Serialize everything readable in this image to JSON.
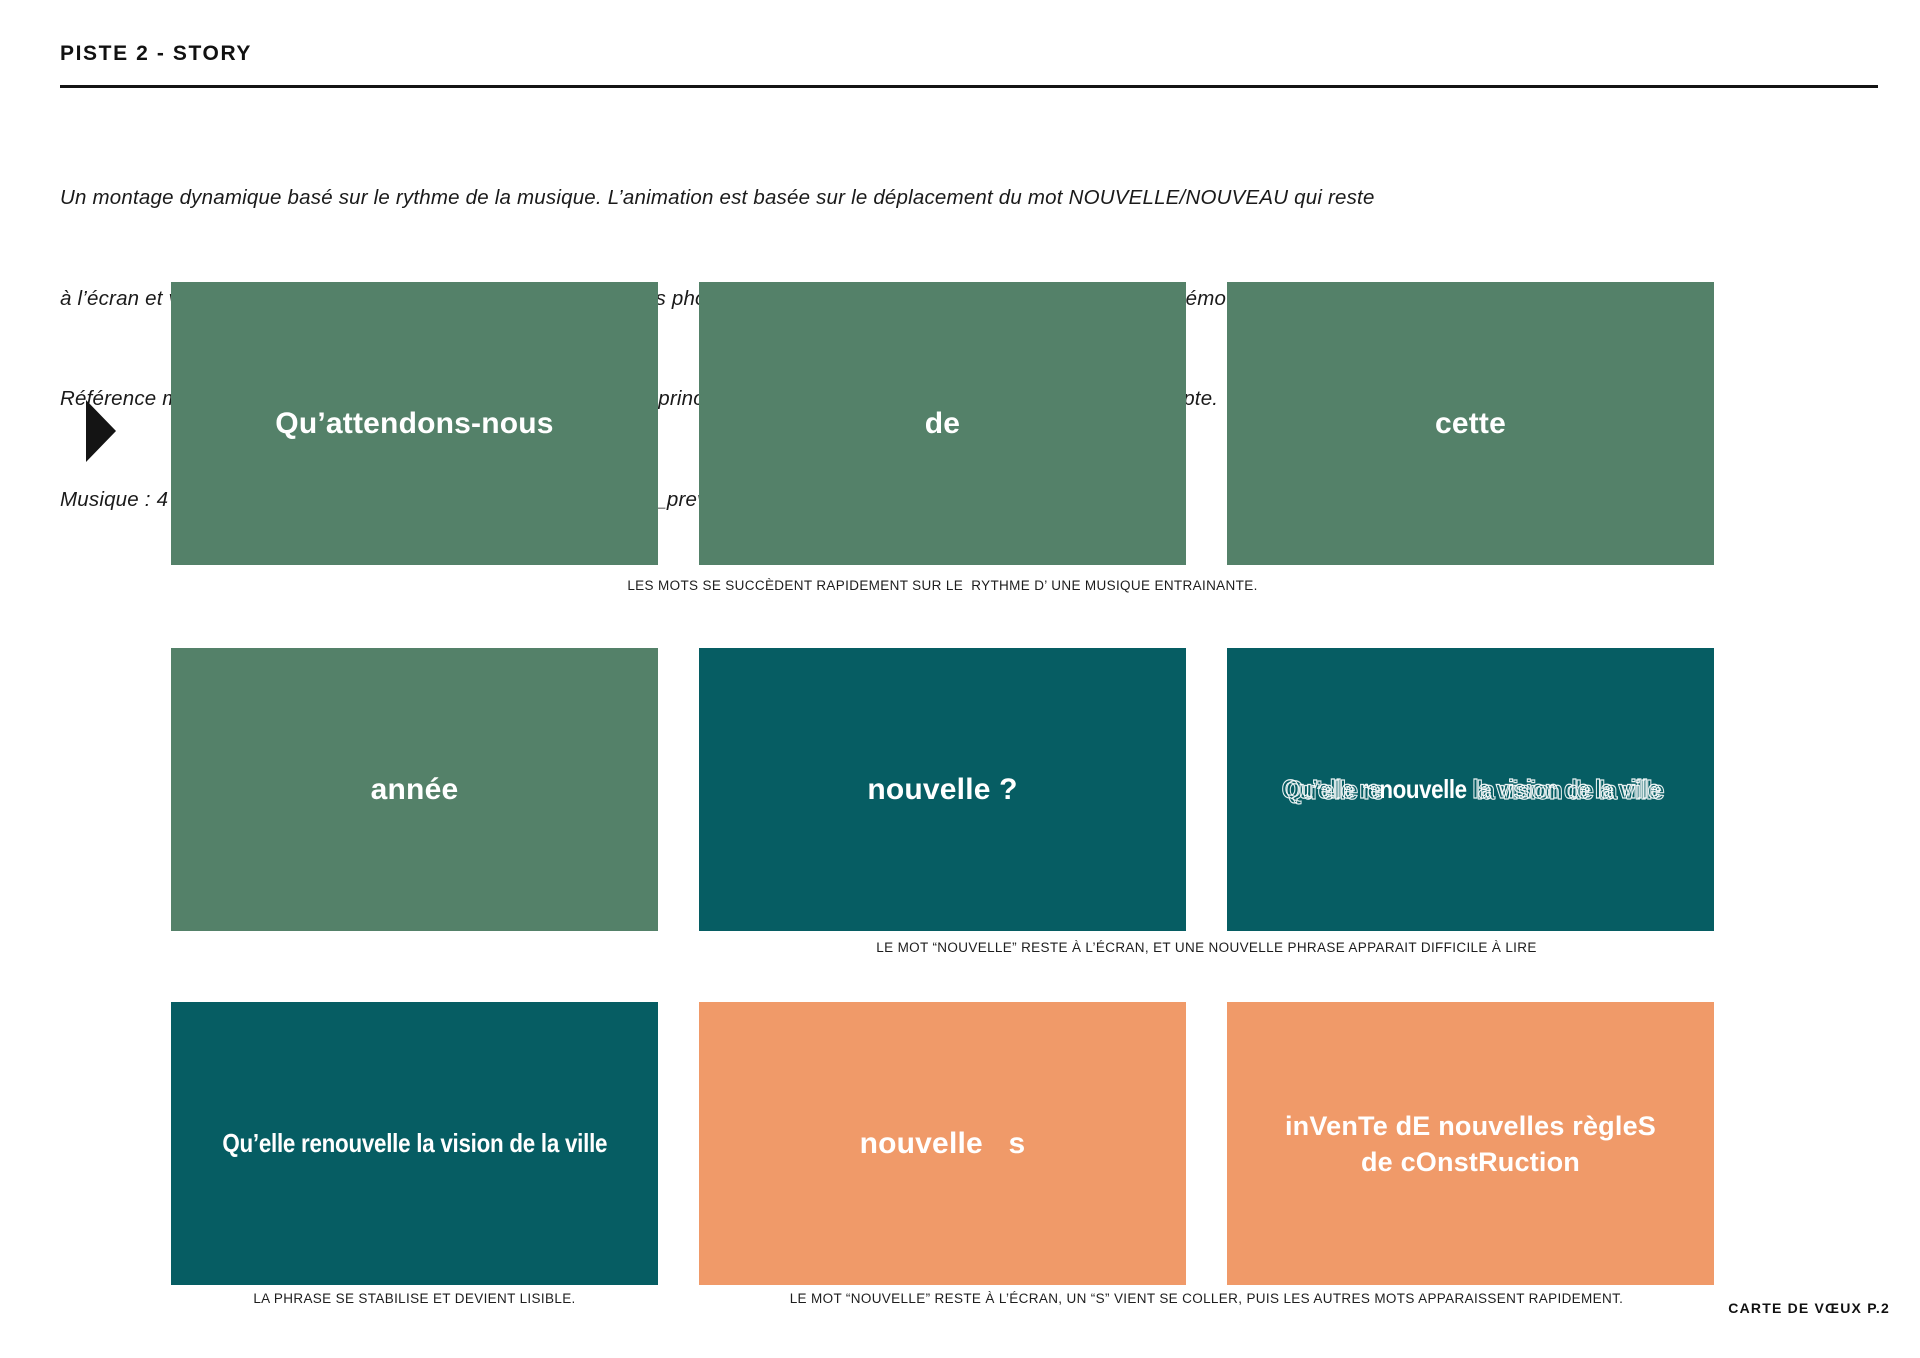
{
  "page": {
    "title": "PISTE 2 - STORY",
    "footer": "CARTE DE VŒUX P.2"
  },
  "intro": {
    "lines": [
      "Un montage dynamique basé sur le rythme de la musique. L’animation est basée sur le déplacement du mot NOUVELLE/NOUVEAU qui reste",
      "à l’écran et vient se positionner dans les différentes phrases. Des photos de réalisations K&B apparaissent à la fin de la démo.",
      "Référence mood vidéo : K&B_CDV_2_inspiration.mp4  > seul le principe des animations des textes est à prendre en compte.",
      "Musique : 4 propositions. Notre recommandation : 483116_short_preview_1.mp3"
    ]
  },
  "icons": {
    "play_marker": "right-pointing-triangle"
  },
  "colors": {
    "tile_green": "#548169",
    "tile_teal": "#065D63",
    "tile_orange": "#F09A69",
    "tile_text": "#FFFFFF",
    "ink": "#141414"
  },
  "storyboard": {
    "rows": [
      {
        "tiles": [
          {
            "text": "Qu’attendons-nous"
          },
          {
            "text": "de"
          },
          {
            "text": "cette"
          }
        ],
        "caption": "LES MOTS SE SUCCÈDENT RAPIDEMENT SUR LE  RYTHME D’ UNE MUSIQUE ENTRAINANTE."
      },
      {
        "tiles": [
          {
            "text": "année"
          },
          {
            "text": "nouvelle ?"
          },
          {
            "pre": "Qu’elle re",
            "highlight": "nouvelle",
            "post": " la vision de la ville"
          }
        ],
        "caption": "LE MOT “NOUVELLE” RESTE À L’ÉCRAN, ET UNE NOUVELLE PHRASE APPARAIT DIFFICILE À LIRE"
      },
      {
        "tiles": [
          {
            "text": "Qu’elle renouvelle la vision de la ville"
          },
          {
            "text": "nouvelle   s"
          },
          {
            "line1": "inVenTe dE nouvelles règleS",
            "line2": "de cOnstRuction"
          }
        ],
        "caption_left": "LA PHRASE SE STABILISE ET DEVIENT LISIBLE.",
        "caption_right": "LE MOT “NOUVELLE” RESTE À L’ÉCRAN, UN “S” VIENT SE COLLER, PUIS LES AUTRES MOTS APPARAISSENT RAPIDEMENT."
      }
    ]
  }
}
